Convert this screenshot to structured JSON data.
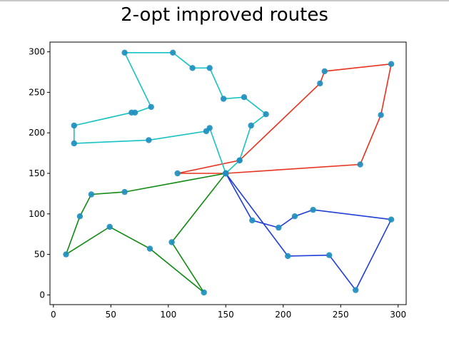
{
  "chart_data": {
    "type": "line",
    "title": "2-opt improved routes",
    "xlabel": "",
    "ylabel": "",
    "xlim": [
      -3,
      307
    ],
    "ylim": [
      -12,
      312
    ],
    "xticks": [
      0,
      50,
      100,
      150,
      200,
      250,
      300
    ],
    "yticks": [
      0,
      50,
      100,
      150,
      200,
      250,
      300
    ],
    "grid": false,
    "marker_color": "#1f8fbf",
    "series": [
      {
        "color": "#e8321e",
        "points": [
          [
            150,
            150
          ],
          [
            267,
            161
          ],
          [
            285,
            222
          ],
          [
            294,
            285
          ],
          [
            236,
            276
          ],
          [
            232,
            261
          ],
          [
            162,
            166
          ],
          [
            108,
            150
          ],
          [
            150,
            150
          ]
        ]
      },
      {
        "color": "#1f3fd6",
        "points": [
          [
            150,
            150
          ],
          [
            173,
            92
          ],
          [
            196,
            83
          ],
          [
            210,
            97
          ],
          [
            226,
            105
          ],
          [
            294,
            93
          ],
          [
            263,
            6
          ],
          [
            240,
            49
          ],
          [
            204,
            48
          ],
          [
            150,
            150
          ]
        ]
      },
      {
        "color": "#118a11",
        "points": [
          [
            150,
            150
          ],
          [
            62,
            127
          ],
          [
            33,
            124
          ],
          [
            23,
            97
          ],
          [
            11,
            50
          ],
          [
            49,
            84
          ],
          [
            84,
            57
          ],
          [
            131,
            3
          ],
          [
            103,
            65
          ],
          [
            150,
            150
          ]
        ]
      },
      {
        "color": "#17c2c2",
        "points": [
          [
            150,
            150
          ],
          [
            136,
            206
          ],
          [
            133,
            202
          ],
          [
            83,
            191
          ],
          [
            18,
            187
          ],
          [
            18,
            209
          ],
          [
            68,
            225
          ],
          [
            71,
            225
          ],
          [
            85,
            232
          ],
          [
            62,
            299
          ],
          [
            104,
            299
          ],
          [
            121,
            280
          ],
          [
            136,
            280
          ],
          [
            148,
            242
          ],
          [
            166,
            244
          ],
          [
            185,
            223
          ],
          [
            172,
            209
          ],
          [
            162,
            166
          ],
          [
            150,
            150
          ]
        ]
      }
    ]
  }
}
